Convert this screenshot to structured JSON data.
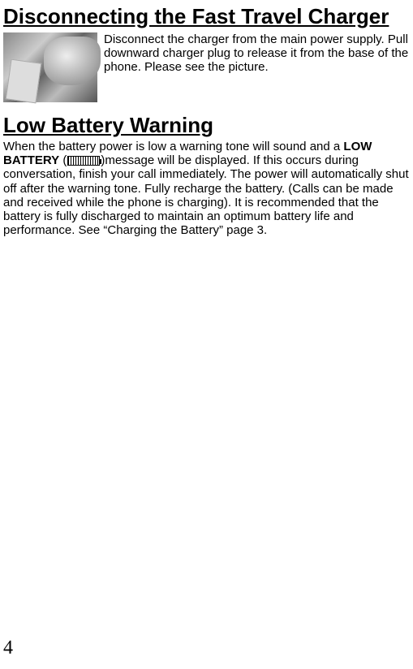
{
  "section1": {
    "heading": "Disconnecting the Fast Travel Charger",
    "body": "Disconnect the charger from the main power supply. Pull downward charger plug to release it from the base of the phone. Please see the picture."
  },
  "section2": {
    "heading": "Low Battery Warning",
    "body_pre": "When the battery power is low a warning tone will sound and a ",
    "body_bold": "LOW BATTERY",
    "body_paren_open": " (",
    "body_paren_close": ")",
    "body_post": "message will be displayed. If this occurs during conversation, finish your call immediately. The power will automatically shut off after the warning tone. Fully recharge the battery. (Calls can be made and received while the phone is charging). It is recommended that the battery is fully discharged to maintain an optimum battery life and performance. See “Charging the Battery” page 3."
  },
  "page_number": "4"
}
